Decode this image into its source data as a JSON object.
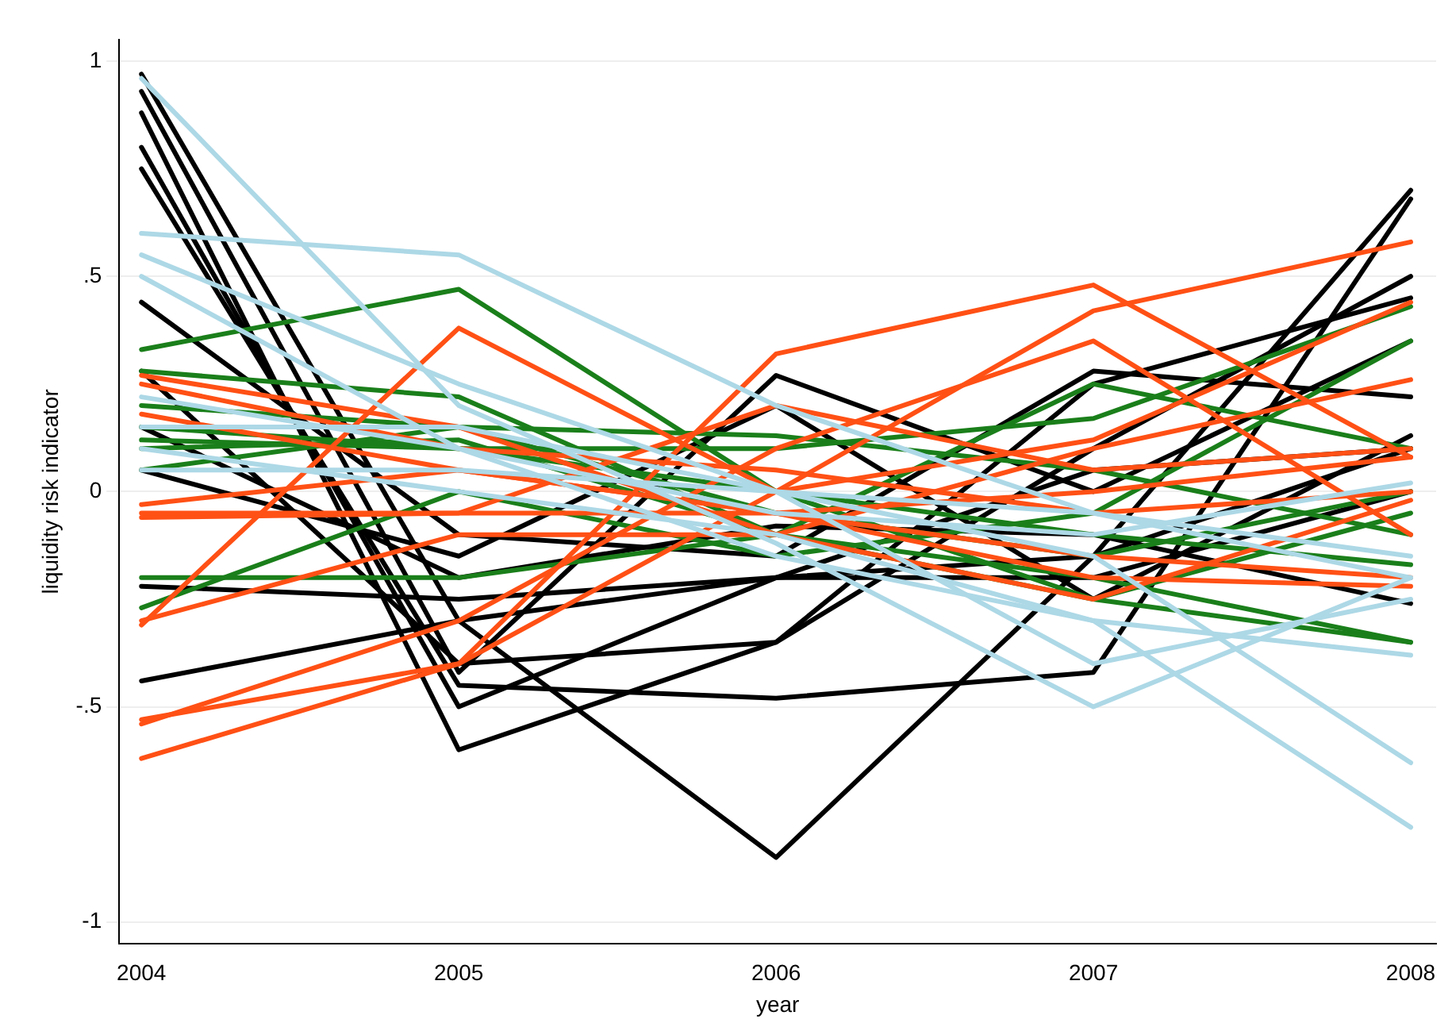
{
  "chart_data": {
    "type": "line",
    "xlabel": "year",
    "ylabel": "liquidity risk indicator",
    "x": [
      2004,
      2005,
      2006,
      2007,
      2008
    ],
    "xlim": [
      2003.93,
      2008.08
    ],
    "xticks": [
      2004,
      2005,
      2006,
      2007,
      2008
    ],
    "ylim": [
      -1.05,
      1.05
    ],
    "yticks": [
      -1,
      {
        "value": -0.5,
        "label": "-.5"
      },
      0,
      {
        "value": 0.5,
        "label": ".5"
      },
      1
    ],
    "grid": "y",
    "legend": false,
    "marker": "none",
    "line_style": "solid",
    "series": [
      {
        "color": "#add8e6",
        "values": [
          0.96,
          0.2,
          -0.12,
          -0.5,
          -0.2
        ]
      },
      {
        "color": "#add8e6",
        "values": [
          0.6,
          0.55,
          0.2,
          -0.05,
          -0.2
        ]
      },
      {
        "color": "#add8e6",
        "values": [
          0.55,
          0.25,
          0.0,
          -0.15,
          -0.63
        ]
      },
      {
        "color": "#add8e6",
        "values": [
          0.5,
          0.1,
          -0.15,
          -0.3,
          -0.78
        ]
      },
      {
        "color": "#add8e6",
        "values": [
          0.15,
          0.15,
          0.0,
          -0.4,
          -0.25
        ]
      },
      {
        "color": "#add8e6",
        "values": [
          0.05,
          0.05,
          0.0,
          -0.05,
          -0.15
        ]
      },
      {
        "color": "#add8e6",
        "values": [
          0.1,
          0.0,
          -0.1,
          -0.3,
          -0.38
        ]
      },
      {
        "color": "#add8e6",
        "values": [
          0.22,
          0.1,
          -0.05,
          -0.1,
          0.02
        ]
      },
      {
        "color": "#ff5015",
        "values": [
          -0.62,
          -0.4,
          0.32,
          0.48,
          0.08
        ]
      },
      {
        "color": "#ff5015",
        "values": [
          -0.53,
          -0.4,
          0.0,
          0.42,
          0.58
        ]
      },
      {
        "color": "#ff5015",
        "values": [
          -0.54,
          -0.3,
          0.1,
          0.35,
          -0.1
        ]
      },
      {
        "color": "#ff5015",
        "values": [
          -0.31,
          0.38,
          0.0,
          0.12,
          0.44
        ]
      },
      {
        "color": "#ff5015",
        "values": [
          -0.3,
          -0.1,
          -0.1,
          0.1,
          0.26
        ]
      },
      {
        "color": "#ff5015",
        "values": [
          -0.05,
          -0.05,
          -0.05,
          0.0,
          0.08
        ]
      },
      {
        "color": "#ff5015",
        "values": [
          -0.03,
          0.05,
          -0.05,
          -0.15,
          -0.2
        ]
      },
      {
        "color": "#ff5015",
        "values": [
          0.25,
          0.1,
          0.05,
          -0.05,
          0.0
        ]
      },
      {
        "color": "#ff5015",
        "values": [
          0.18,
          0.05,
          -0.05,
          -0.2,
          -0.22
        ]
      },
      {
        "color": "#ff5015",
        "values": [
          -0.06,
          -0.05,
          0.2,
          0.05,
          0.1
        ]
      },
      {
        "color": "#ff5015",
        "values": [
          0.27,
          0.15,
          -0.1,
          -0.25,
          -0.02
        ]
      },
      {
        "color": "#1a7f1a",
        "values": [
          0.33,
          0.47,
          0.0,
          -0.25,
          -0.35
        ]
      },
      {
        "color": "#1a7f1a",
        "values": [
          0.28,
          0.22,
          -0.1,
          0.25,
          0.1
        ]
      },
      {
        "color": "#1a7f1a",
        "values": [
          0.15,
          0.1,
          0.1,
          0.17,
          0.43
        ]
      },
      {
        "color": "#1a7f1a",
        "values": [
          0.1,
          0.12,
          -0.1,
          -0.2,
          -0.35
        ]
      },
      {
        "color": "#1a7f1a",
        "values": [
          0.05,
          0.15,
          -0.05,
          -0.15,
          0.0
        ]
      },
      {
        "color": "#1a7f1a",
        "values": [
          -0.2,
          -0.2,
          -0.1,
          -0.25,
          -0.05
        ]
      },
      {
        "color": "#1a7f1a",
        "values": [
          -0.27,
          0.0,
          -0.15,
          -0.05,
          0.35
        ]
      },
      {
        "color": "#1a7f1a",
        "values": [
          0.2,
          0.15,
          0.13,
          0.05,
          -0.1
        ]
      },
      {
        "color": "#1a7f1a",
        "values": [
          0.12,
          0.1,
          0.0,
          -0.1,
          -0.17
        ]
      },
      {
        "color": "#000000",
        "values": [
          0.97,
          -0.3,
          -0.85,
          -0.15,
          0.1
        ]
      },
      {
        "color": "#000000",
        "values": [
          0.88,
          -0.6,
          -0.35,
          0.25,
          0.45
        ]
      },
      {
        "color": "#000000",
        "values": [
          0.8,
          -0.5,
          -0.2,
          -0.15,
          0.7
        ]
      },
      {
        "color": "#000000",
        "values": [
          0.75,
          -0.45,
          -0.48,
          -0.42,
          0.68
        ]
      },
      {
        "color": "#000000",
        "values": [
          0.93,
          -0.42,
          0.27,
          0.0,
          0.35
        ]
      },
      {
        "color": "#000000",
        "values": [
          0.44,
          -0.1,
          -0.15,
          0.28,
          0.22
        ]
      },
      {
        "color": "#000000",
        "values": [
          0.28,
          -0.4,
          -0.35,
          0.1,
          0.5
        ]
      },
      {
        "color": "#000000",
        "values": [
          -0.22,
          -0.25,
          -0.2,
          -0.2,
          0.0
        ]
      },
      {
        "color": "#000000",
        "values": [
          -0.44,
          -0.3,
          -0.2,
          0.05,
          0.1
        ]
      },
      {
        "color": "#000000",
        "values": [
          0.05,
          -0.15,
          0.2,
          -0.25,
          0.13
        ]
      },
      {
        "color": "#000000",
        "values": [
          0.15,
          -0.2,
          -0.08,
          -0.1,
          -0.26
        ]
      }
    ]
  }
}
